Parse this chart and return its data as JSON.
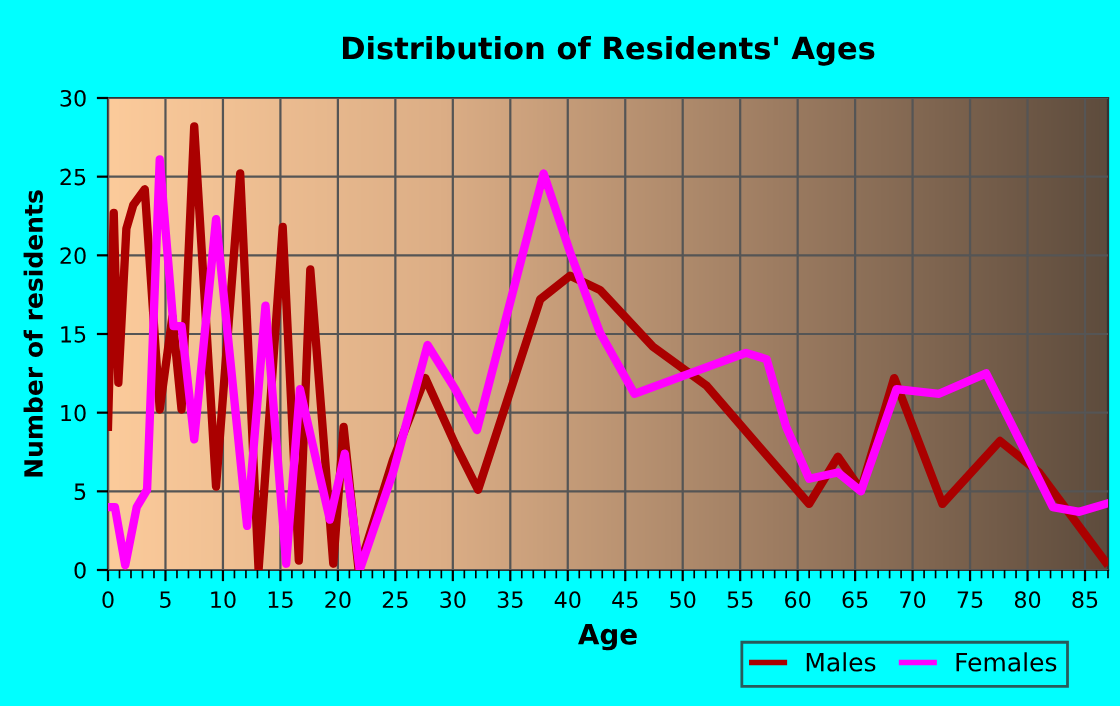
{
  "chart_data": {
    "type": "line",
    "title": "Distribution of Residents' Ages",
    "xlabel": "Age",
    "ylabel": "Number of residents",
    "series": [
      {
        "name": "Males",
        "color": "#aa0000",
        "x": [
          0,
          0.5,
          0.9,
          1.6,
          2.2,
          3.2,
          4.5,
          5.6,
          6.4,
          7.5,
          9.4,
          11.5,
          13.1,
          15.2,
          16.6,
          17.6,
          19.6,
          20.5,
          21.8,
          24.8,
          27.6,
          30.2,
          32.2,
          37.6,
          40.2,
          42.8,
          47.4,
          52.1,
          56.7,
          61.0,
          63.5,
          65.5,
          68.4,
          72.6,
          77.6,
          81.0,
          86.8
        ],
        "values": [
          9.1,
          22.7,
          11.9,
          21.7,
          23.2,
          24.2,
          10.2,
          16.1,
          10.2,
          28.2,
          5.3,
          25.2,
          0,
          21.8,
          0.6,
          19.1,
          0.4,
          9.1,
          0,
          7,
          12.2,
          8,
          5.1,
          17.2,
          18.7,
          17.8,
          14.2,
          11.7,
          7.8,
          4.2,
          7.2,
          5.1,
          12.2,
          4.2,
          8.2,
          6.2,
          0.5
        ]
      },
      {
        "name": "Females",
        "color": "#ff00ff",
        "x": [
          0,
          0.6,
          1.5,
          2.5,
          3.4,
          4.5,
          5.7,
          6.4,
          7.5,
          9.4,
          12.1,
          13.7,
          15.5,
          16.7,
          19.3,
          20.6,
          21.9,
          24.8,
          27.8,
          30.2,
          32.1,
          37.9,
          40.2,
          42.8,
          45.8,
          52.1,
          55.5,
          57.3,
          59.0,
          61.0,
          63.5,
          65.5,
          68.6,
          72.3,
          76.4,
          82.2,
          84.5,
          86.8
        ],
        "values": [
          4.0,
          4.0,
          0.3,
          4.0,
          5.1,
          26.1,
          15.5,
          15.5,
          8.3,
          22.3,
          2.8,
          16.8,
          0.4,
          11.5,
          3.2,
          7.4,
          0,
          6.2,
          14.3,
          11.5,
          8.9,
          25.2,
          20.2,
          15.1,
          11.2,
          12.9,
          13.8,
          13.4,
          9.1,
          5.8,
          6.2,
          5.0,
          11.5,
          11.2,
          12.5,
          4.0,
          3.7,
          4.2
        ]
      }
    ],
    "xlim": [
      0,
      87
    ],
    "xticks": [
      0,
      5,
      10,
      15,
      20,
      25,
      30,
      35,
      40,
      45,
      50,
      55,
      60,
      65,
      70,
      75,
      80,
      85
    ],
    "ylim": [
      0,
      30
    ],
    "yticks": [
      0,
      5,
      10,
      15,
      20,
      25,
      30
    ],
    "grid": true,
    "legend": "bottom right",
    "marker": "none",
    "line_style": "solid"
  }
}
